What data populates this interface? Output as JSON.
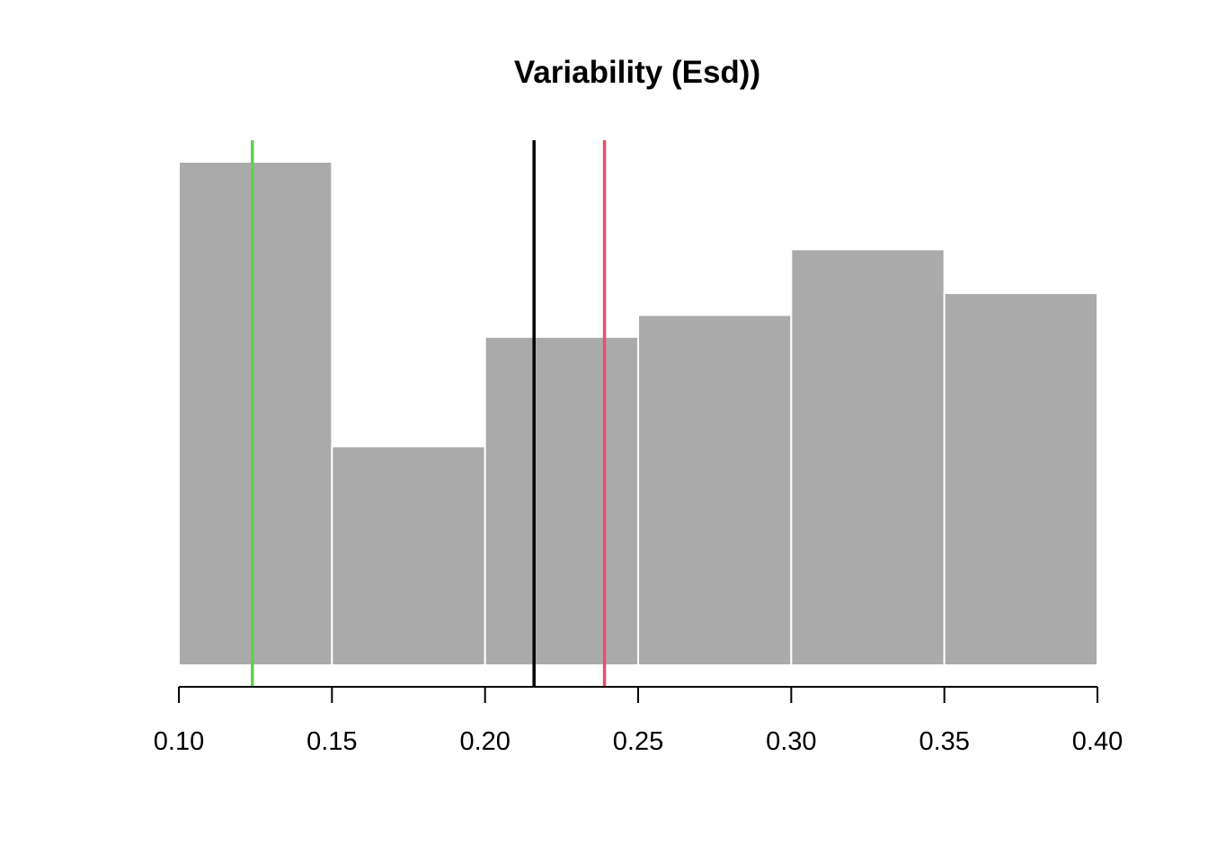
{
  "chart_data": {
    "type": "histogram",
    "title": "Variability (Esd))",
    "xlabel": "",
    "ylabel": "",
    "bins": [
      {
        "start": 0.1,
        "end": 0.15,
        "count": 23
      },
      {
        "start": 0.15,
        "end": 0.2,
        "count": 10
      },
      {
        "start": 0.2,
        "end": 0.25,
        "count": 15
      },
      {
        "start": 0.25,
        "end": 0.3,
        "count": 16
      },
      {
        "start": 0.3,
        "end": 0.35,
        "count": 19
      },
      {
        "start": 0.35,
        "end": 0.4,
        "count": 17
      }
    ],
    "xlim": [
      0.1,
      0.4
    ],
    "ylim": [
      0,
      24
    ],
    "x_ticks": [
      0.1,
      0.15,
      0.2,
      0.25,
      0.3,
      0.35,
      0.4
    ],
    "x_tick_labels": [
      "0.10",
      "0.15",
      "0.20",
      "0.25",
      "0.30",
      "0.35",
      "0.40"
    ],
    "show_y_axis": false,
    "grid": false,
    "bar_color": "#aaaaaa",
    "bar_border_color": "#ffffff",
    "vertical_lines": [
      {
        "x": 0.124,
        "color": "#61d04f"
      },
      {
        "x": 0.216,
        "color": "#000000"
      },
      {
        "x": 0.239,
        "color": "#df536b"
      }
    ]
  }
}
